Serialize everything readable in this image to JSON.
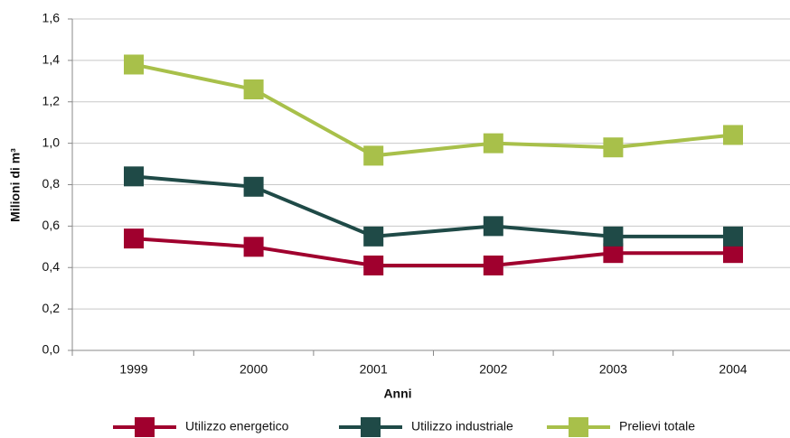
{
  "chart_data": {
    "type": "line",
    "x_label": "Anni",
    "y_label": "Milioni di m³",
    "categories": [
      "1999",
      "2000",
      "2001",
      "2002",
      "2003",
      "2004"
    ],
    "series": [
      {
        "name": "Utilizzo energetico",
        "color": "#a0002e",
        "values": [
          0.54,
          0.5,
          0.41,
          0.41,
          0.47,
          0.47
        ]
      },
      {
        "name": "Utilizzo industriale",
        "color": "#1f4a47",
        "values": [
          0.84,
          0.79,
          0.55,
          0.6,
          0.55,
          0.55
        ]
      },
      {
        "name": "Prelievi totale",
        "color": "#a8c04a",
        "values": [
          1.38,
          1.26,
          0.94,
          1.0,
          0.98,
          1.04
        ]
      }
    ],
    "ylim": [
      0,
      1.6
    ],
    "yticks": [
      {
        "value": 0,
        "label": "0,0"
      },
      {
        "value": 0.2,
        "label": "0,2"
      },
      {
        "value": 0.4,
        "label": "0,4"
      },
      {
        "value": 0.6,
        "label": "0,6"
      },
      {
        "value": 0.8,
        "label": "0,8"
      },
      {
        "value": 1.0,
        "label": "1,0"
      },
      {
        "value": 1.2,
        "label": "1,2"
      },
      {
        "value": 1.4,
        "label": "1,4"
      },
      {
        "value": 1.6,
        "label": "1,6"
      }
    ],
    "grid": true,
    "legend": "bottom"
  }
}
